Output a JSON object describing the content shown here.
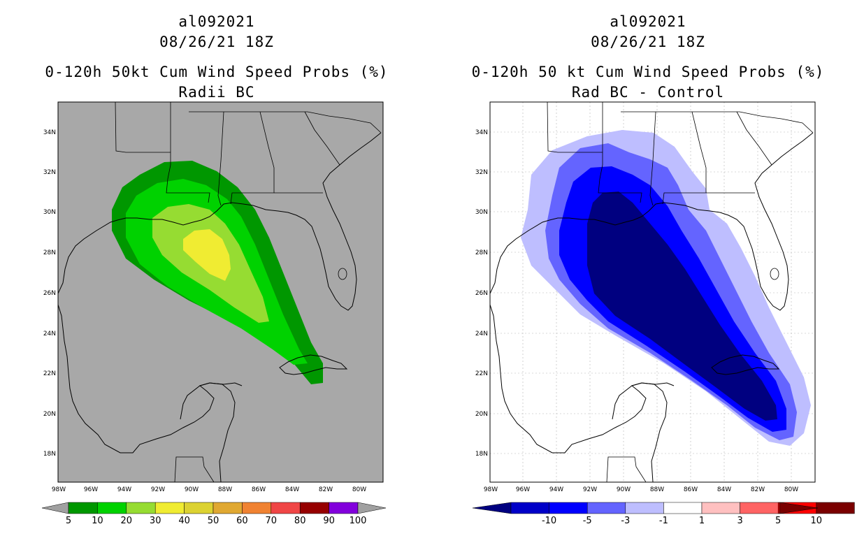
{
  "left_panel": {
    "title_line1": "al092021",
    "title_line2": "08/26/21 18Z",
    "title_line3": "0-120h 50kt Cum Wind Speed Probs (%)",
    "title_line4": "Radii BC",
    "lat_labels": [
      "34N",
      "32N",
      "30N",
      "28N",
      "26N",
      "24N",
      "22N",
      "20N",
      "18N"
    ],
    "lon_labels": [
      "98W",
      "96W",
      "94W",
      "92W",
      "90W",
      "88W",
      "86W",
      "84W",
      "82W",
      "80W"
    ],
    "colorbar": {
      "labels": [
        "5",
        "10",
        "20",
        "30",
        "40",
        "50",
        "60",
        "70",
        "80",
        "90",
        "100"
      ],
      "colors": [
        "#009700",
        "#00d200",
        "#96dc32",
        "#f0ec32",
        "#dcd232",
        "#e0a832",
        "#f08232",
        "#f04646",
        "#960000",
        "#8200dc"
      ],
      "end_color": "#a0a0a0"
    },
    "background_color": "#a8a8a8",
    "contour_colors": {
      "c5": "#009700",
      "c10": "#00d200",
      "c20": "#96dc32",
      "c30": "#f0ec32"
    }
  },
  "right_panel": {
    "title_line1": "al092021",
    "title_line2": "08/26/21 18Z",
    "title_line3": "0-120h 50 kt Cum Wind Speed Probs (%)",
    "title_line4": "Rad BC - Control",
    "lat_labels": [
      "34N",
      "32N",
      "30N",
      "28N",
      "26N",
      "24N",
      "22N",
      "20N",
      "18N"
    ],
    "lon_labels": [
      "98W",
      "96W",
      "94W",
      "92W",
      "90W",
      "88W",
      "86W",
      "84W",
      "82W",
      "80W"
    ],
    "colorbar": {
      "labels": [
        "-10",
        "-5",
        "-3",
        "-1",
        "1",
        "3",
        "5",
        "10"
      ],
      "colors": [
        "#0000c8",
        "#0000ff",
        "#6464ff",
        "#bebeff",
        "#ffffff",
        "#ffc0c0",
        "#ff6464",
        "#ff0000",
        "#7a0000"
      ],
      "left_end": "#000080",
      "right_end": "#7a0000"
    },
    "contour_colors": {
      "c1": "#bebeff",
      "c3": "#6464ff",
      "c5": "#0000ff",
      "c10": "#000080"
    }
  }
}
